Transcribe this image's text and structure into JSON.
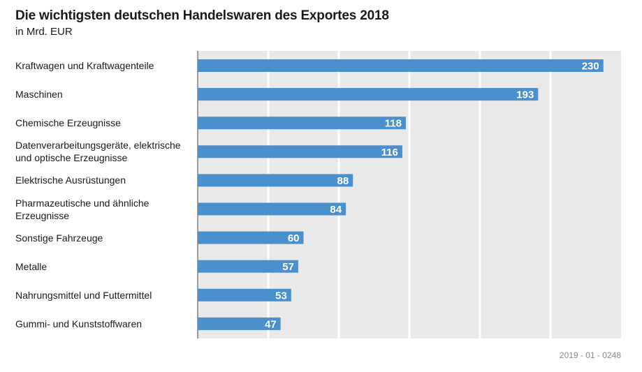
{
  "chart_data": {
    "type": "bar",
    "orientation": "horizontal",
    "title": "Die wichtigsten deutschen Handelswaren des Exportes 2018",
    "subtitle": "in Mrd. EUR",
    "categories": [
      "Kraftwagen und Kraftwagenteile",
      "Maschinen",
      "Chemische Erzeugnisse",
      "Datenverarbeitungsgeräte, elektrische und optische Erzeugnisse",
      "Elektrische Ausrüstungen",
      "Pharmazeutische und ähnliche Erzeugnisse",
      "Sonstige Fahrzeuge",
      "Metalle",
      "Nahrungsmittel und Futtermittel",
      "Gummi- und Kunststoffwaren"
    ],
    "values": [
      230,
      193,
      118,
      116,
      88,
      84,
      60,
      57,
      53,
      47
    ],
    "xlim": [
      0,
      240
    ],
    "gridlines": [
      40,
      80,
      120,
      160,
      200
    ],
    "grid": true,
    "data_labels": true,
    "source_note": "2019 - 01 - 0248",
    "colors": {
      "bar": "#4a90cd",
      "plot_background": "#e9e9e9",
      "grid": "#ffffff",
      "axis": "#808080"
    }
  }
}
